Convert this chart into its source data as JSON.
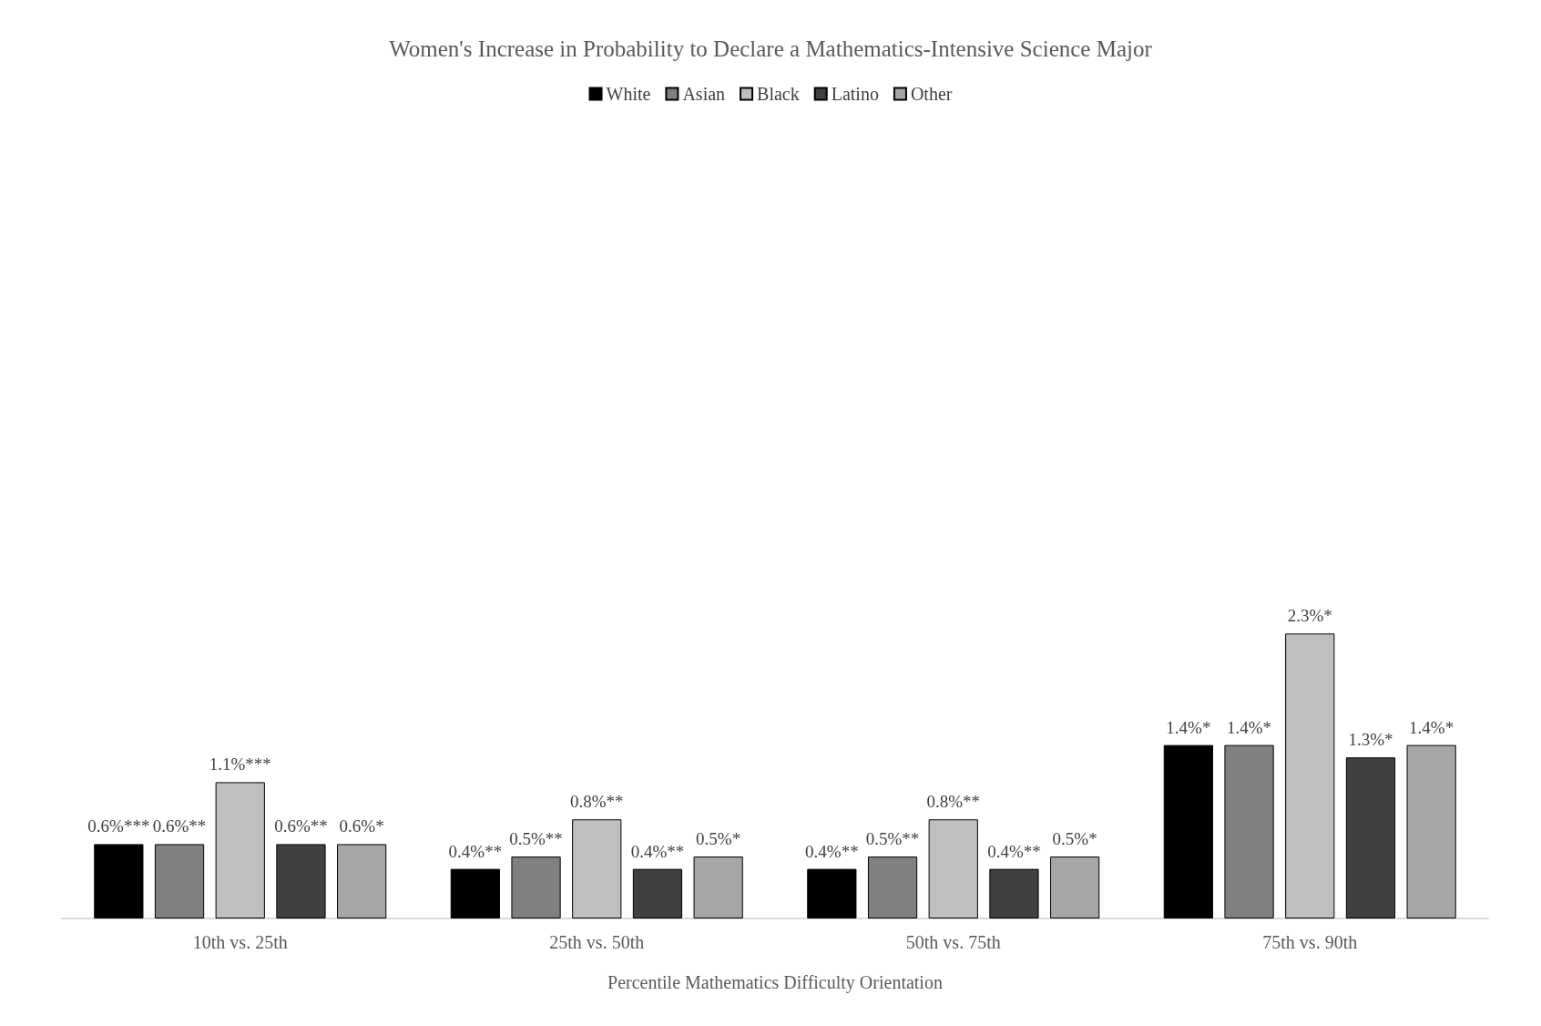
{
  "chart_data": {
    "type": "bar",
    "title": "Women's Increase in Probability to Declare a Mathematics-Intensive Science Major",
    "xlabel": "Percentile Mathematics Difficulty Orientation",
    "categories": [
      "10th vs. 25th",
      "25th vs. 50th",
      "50th vs. 75th",
      "75th vs. 90th"
    ],
    "series": [
      {
        "name": "White",
        "color": "#000000",
        "values": [
          0.6,
          0.4,
          0.4,
          1.4
        ],
        "value_labels": [
          "0.6%***",
          "0.4%**",
          "0.4%**",
          "1.4%*"
        ]
      },
      {
        "name": "Asian",
        "color": "#808080",
        "values": [
          0.6,
          0.5,
          0.5,
          1.4
        ],
        "value_labels": [
          "0.6%**",
          "0.5%**",
          "0.5%**",
          "1.4%*"
        ]
      },
      {
        "name": "Black",
        "color": "#bfbfbf",
        "values": [
          1.1,
          0.8,
          0.8,
          2.3
        ],
        "value_labels": [
          "1.1%***",
          "0.8%**",
          "0.8%**",
          "2.3%*"
        ]
      },
      {
        "name": "Latino",
        "color": "#404040",
        "values": [
          0.6,
          0.4,
          0.4,
          1.3
        ],
        "value_labels": [
          "0.6%**",
          "0.4%**",
          "0.4%**",
          "1.3%*"
        ]
      },
      {
        "name": "Other",
        "color": "#a6a6a6",
        "values": [
          0.6,
          0.5,
          0.5,
          1.4
        ],
        "value_labels": [
          "0.6%*",
          "0.5%*",
          "0.5%*",
          "1.4%*"
        ]
      }
    ],
    "legend": "top"
  }
}
